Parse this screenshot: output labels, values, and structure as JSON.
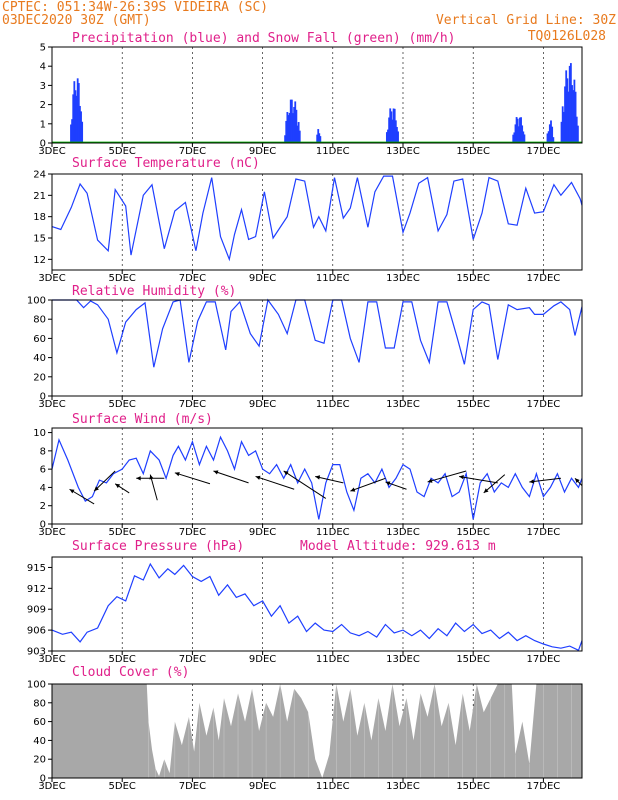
{
  "header": {
    "line1": "CPTEC:   051:34W-26:39S  VIDEIRA (SC)",
    "line2": "03DEC2020 30Z (GMT)",
    "grid_note": "Vertical Grid Line: 30Z",
    "code": "TQ0126L028"
  },
  "colors": {
    "header": "#e87a1e",
    "panel_title": "#e0208a",
    "precip": "#1f3fff",
    "snow": "#00b000",
    "line": "#1f3fff",
    "cloud": "#a8a8a8",
    "wind_arrow": "#000000"
  },
  "x_axis": {
    "ticks": [
      "3DEC",
      "5DEC",
      "7DEC",
      "9DEC",
      "11DEC",
      "13DEC",
      "15DEC",
      "17DEC"
    ],
    "tick_days": [
      3,
      5,
      7,
      9,
      11,
      13,
      15,
      17
    ],
    "range_days": [
      3,
      18.1
    ]
  },
  "model_altitude": "Model Altitude: 929.613 m",
  "chart_data": [
    {
      "type": "bar",
      "title": "Precipitation (blue) and Snow Fall (green) (mm/h)",
      "ylim": [
        0,
        5
      ],
      "yticks": [
        "0",
        "1",
        "2",
        "3",
        "4",
        "5"
      ],
      "events": [
        {
          "day": 3.7,
          "width": 0.35,
          "peak": 3.6
        },
        {
          "day": 9.85,
          "width": 0.45,
          "peak": 2.4
        },
        {
          "day": 10.6,
          "width": 0.12,
          "peak": 0.8
        },
        {
          "day": 12.7,
          "width": 0.35,
          "peak": 2.0
        },
        {
          "day": 16.3,
          "width": 0.35,
          "peak": 1.5
        },
        {
          "day": 17.2,
          "width": 0.2,
          "peak": 1.2
        },
        {
          "day": 17.75,
          "width": 0.5,
          "peak": 4.3
        }
      ],
      "series": [
        {
          "name": "Precipitation (blue)"
        },
        {
          "name": "Snow Fall (green)",
          "values": [
            0
          ]
        }
      ]
    },
    {
      "type": "line",
      "title": "Surface Temperature (nC)",
      "ylim": [
        10.5,
        24
      ],
      "yticks": [
        "12",
        "15",
        "18",
        "21",
        "24"
      ],
      "x": [
        3.0,
        3.25,
        3.55,
        3.8,
        4.0,
        4.3,
        4.6,
        4.8,
        5.1,
        5.25,
        5.6,
        5.85,
        6.2,
        6.5,
        6.8,
        7.1,
        7.3,
        7.55,
        7.8,
        8.05,
        8.2,
        8.4,
        8.6,
        8.8,
        9.05,
        9.3,
        9.7,
        9.95,
        10.2,
        10.45,
        10.6,
        10.8,
        11.05,
        11.3,
        11.5,
        11.7,
        12.0,
        12.2,
        12.45,
        12.7,
        13.0,
        13.2,
        13.45,
        13.7,
        14.0,
        14.25,
        14.45,
        14.7,
        15.0,
        15.25,
        15.45,
        15.7,
        16.0,
        16.25,
        16.5,
        16.75,
        17.0,
        17.3,
        17.5,
        17.8,
        18.05,
        18.1
      ],
      "values": [
        16.6,
        16.2,
        19.3,
        22.6,
        21.3,
        14.7,
        13.2,
        21.8,
        19.5,
        12.6,
        21.0,
        22.5,
        13.5,
        18.8,
        20.0,
        13.2,
        18.5,
        23.5,
        15.2,
        12.0,
        15.5,
        19.0,
        14.8,
        15.2,
        21.5,
        15.0,
        18.0,
        23.3,
        23.0,
        16.5,
        18.0,
        16.0,
        23.5,
        17.8,
        19.2,
        23.5,
        16.5,
        21.5,
        23.7,
        23.7,
        15.8,
        18.5,
        22.7,
        23.5,
        16.0,
        18.3,
        23.0,
        23.3,
        14.8,
        18.5,
        23.5,
        23.0,
        17.0,
        16.8,
        22.0,
        18.5,
        18.7,
        22.5,
        21.0,
        22.8,
        20.5,
        19.6
      ]
    },
    {
      "type": "line",
      "title": "Relative Humidity (%)",
      "ylim": [
        0,
        100
      ],
      "yticks": [
        "0",
        "20",
        "40",
        "60",
        "80",
        "100"
      ],
      "x": [
        3.0,
        3.5,
        3.7,
        3.9,
        4.1,
        4.3,
        4.6,
        4.85,
        5.1,
        5.4,
        5.65,
        5.9,
        6.15,
        6.45,
        6.65,
        6.9,
        7.15,
        7.4,
        7.65,
        7.95,
        8.1,
        8.35,
        8.65,
        8.9,
        9.15,
        9.45,
        9.7,
        9.95,
        10.2,
        10.5,
        10.75,
        11.0,
        11.25,
        11.5,
        11.75,
        12.0,
        12.25,
        12.5,
        12.75,
        13.0,
        13.25,
        13.5,
        13.75,
        14.0,
        14.25,
        14.55,
        14.75,
        15.0,
        15.25,
        15.45,
        15.7,
        16.0,
        16.25,
        16.6,
        16.75,
        17.0,
        17.3,
        17.5,
        17.75,
        17.9,
        18.1
      ],
      "values": [
        100,
        100,
        100,
        92,
        99,
        95,
        80,
        45,
        77,
        90,
        97,
        30,
        70,
        98,
        100,
        35,
        78,
        98,
        98,
        48,
        88,
        98,
        65,
        52,
        100,
        85,
        65,
        100,
        100,
        58,
        55,
        100,
        100,
        60,
        35,
        98,
        98,
        50,
        50,
        98,
        98,
        58,
        35,
        98,
        98,
        60,
        33,
        90,
        98,
        95,
        38,
        95,
        90,
        92,
        85,
        85,
        94,
        98,
        90,
        63,
        93
      ]
    },
    {
      "type": "line",
      "title": "Surface Wind (m/s)",
      "ylim": [
        0,
        10.5
      ],
      "yticks": [
        "0",
        "2",
        "4",
        "6",
        "8",
        "10"
      ],
      "x": [
        3.0,
        3.2,
        3.45,
        3.75,
        3.95,
        4.15,
        4.35,
        4.55,
        4.75,
        5.0,
        5.2,
        5.4,
        5.6,
        5.8,
        6.05,
        6.25,
        6.45,
        6.6,
        6.8,
        7.0,
        7.2,
        7.4,
        7.6,
        7.8,
        8.0,
        8.2,
        8.4,
        8.6,
        8.8,
        9.0,
        9.2,
        9.4,
        9.6,
        9.8,
        10.0,
        10.2,
        10.4,
        10.6,
        10.8,
        11.0,
        11.2,
        11.4,
        11.6,
        11.8,
        12.0,
        12.2,
        12.4,
        12.6,
        12.8,
        13.0,
        13.2,
        13.4,
        13.6,
        13.8,
        14.0,
        14.2,
        14.4,
        14.6,
        14.8,
        15.0,
        15.2,
        15.4,
        15.6,
        15.8,
        16.0,
        16.2,
        16.4,
        16.6,
        16.8,
        17.0,
        17.2,
        17.4,
        17.6,
        17.8,
        18.0,
        18.1
      ],
      "values": [
        6.0,
        9.2,
        7.0,
        4.0,
        2.5,
        3.0,
        4.8,
        4.5,
        5.5,
        6.0,
        7.0,
        7.2,
        5.5,
        8.0,
        7.0,
        5.0,
        7.5,
        8.5,
        7.0,
        9.0,
        6.5,
        8.5,
        7.0,
        9.5,
        8.0,
        6.0,
        9.0,
        7.5,
        8.0,
        6.0,
        5.5,
        6.5,
        5.0,
        6.5,
        4.5,
        6.0,
        4.5,
        0.5,
        4.5,
        6.5,
        6.5,
        3.5,
        1.5,
        5.0,
        5.5,
        4.5,
        6.0,
        4.0,
        5.0,
        6.5,
        6.0,
        3.5,
        3.0,
        5.0,
        4.5,
        5.5,
        3.0,
        3.5,
        5.5,
        0.5,
        4.5,
        5.5,
        3.5,
        4.5,
        4.0,
        5.5,
        4.0,
        3.0,
        5.5,
        3.0,
        4.0,
        5.5,
        3.5,
        5.0,
        4.0,
        5.0
      ]
    },
    {
      "type": "line",
      "title": "Surface Pressure (hPa)",
      "ylim": [
        903,
        916.5
      ],
      "yticks": [
        "903",
        "906",
        "909",
        "912",
        "915"
      ],
      "x": [
        3.0,
        3.3,
        3.55,
        3.8,
        4.0,
        4.3,
        4.6,
        4.85,
        5.1,
        5.35,
        5.6,
        5.8,
        6.05,
        6.3,
        6.5,
        6.75,
        7.0,
        7.25,
        7.5,
        7.75,
        8.0,
        8.25,
        8.5,
        8.75,
        9.0,
        9.25,
        9.5,
        9.75,
        10.0,
        10.25,
        10.5,
        10.75,
        11.0,
        11.25,
        11.5,
        11.75,
        12.0,
        12.25,
        12.5,
        12.75,
        13.0,
        13.25,
        13.5,
        13.75,
        14.0,
        14.25,
        14.5,
        14.75,
        15.0,
        15.25,
        15.5,
        15.75,
        16.0,
        16.25,
        16.5,
        16.75,
        17.0,
        17.25,
        17.5,
        17.75,
        18.0,
        18.1
      ],
      "values": [
        906.0,
        905.4,
        905.7,
        904.3,
        905.7,
        906.3,
        909.5,
        910.8,
        910.2,
        913.8,
        913.2,
        915.5,
        913.5,
        914.8,
        914.0,
        915.3,
        913.7,
        913.0,
        913.7,
        911.0,
        912.5,
        910.7,
        911.2,
        909.5,
        910.2,
        908.0,
        909.5,
        907.0,
        908.0,
        905.8,
        907.0,
        906.0,
        905.8,
        906.8,
        905.6,
        905.2,
        905.8,
        905.0,
        906.8,
        905.6,
        906.0,
        905.2,
        906.0,
        904.8,
        906.2,
        905.2,
        907.0,
        905.8,
        906.8,
        905.5,
        906.0,
        904.8,
        905.7,
        904.5,
        905.2,
        904.5,
        904.0,
        903.6,
        903.4,
        903.7,
        903.1,
        904.5
      ]
    },
    {
      "type": "area",
      "title": "Cloud Cover (%)",
      "ylim": [
        0,
        100
      ],
      "yticks": [
        "0",
        "20",
        "40",
        "60",
        "80",
        "100"
      ],
      "x": [
        3.0,
        5.7,
        5.75,
        5.85,
        5.95,
        6.05,
        6.2,
        6.35,
        6.5,
        6.7,
        6.9,
        7.05,
        7.2,
        7.4,
        7.6,
        7.75,
        7.9,
        8.1,
        8.3,
        8.5,
        8.7,
        8.9,
        9.1,
        9.3,
        9.5,
        9.7,
        9.9,
        10.1,
        10.3,
        10.5,
        10.7,
        10.9,
        11.1,
        11.3,
        11.5,
        11.7,
        11.9,
        12.1,
        12.3,
        12.5,
        12.7,
        12.9,
        13.1,
        13.3,
        13.5,
        13.7,
        13.9,
        14.1,
        14.3,
        14.5,
        14.7,
        14.9,
        15.1,
        15.3,
        15.5,
        15.7,
        15.9,
        16.1,
        16.2,
        16.4,
        16.6,
        16.8,
        17.0,
        17.2,
        17.4,
        17.6,
        17.8,
        18.0,
        18.1
      ],
      "values": [
        100,
        100,
        60,
        30,
        10,
        2,
        20,
        5,
        60,
        35,
        65,
        28,
        80,
        45,
        75,
        40,
        85,
        55,
        90,
        60,
        95,
        50,
        80,
        65,
        100,
        60,
        95,
        85,
        70,
        20,
        0,
        25,
        100,
        60,
        95,
        45,
        80,
        40,
        85,
        50,
        100,
        55,
        85,
        40,
        90,
        65,
        100,
        55,
        80,
        35,
        90,
        50,
        100,
        70,
        85,
        100,
        100,
        100,
        25,
        60,
        15,
        100,
        100,
        100,
        100,
        100,
        100,
        100,
        100
      ]
    }
  ]
}
